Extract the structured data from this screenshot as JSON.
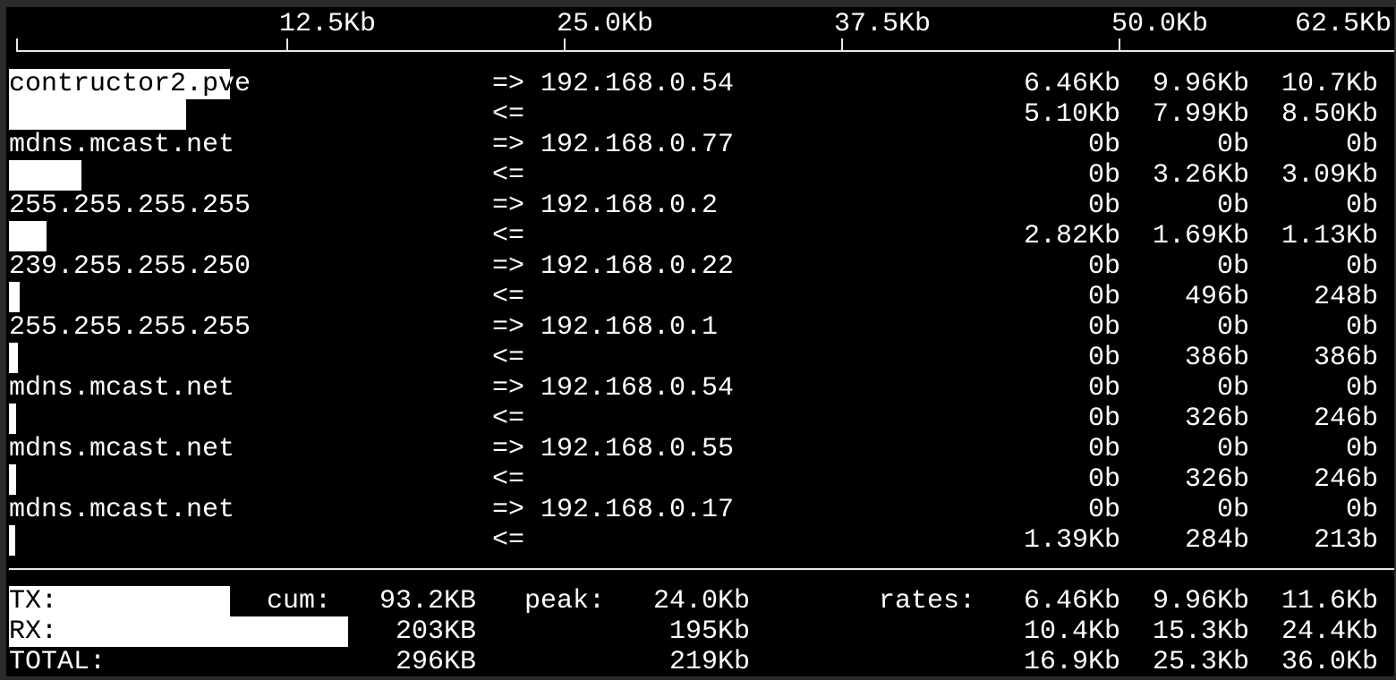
{
  "scale": {
    "ticks": [
      "12.5Kb",
      "25.0Kb",
      "37.5Kb",
      "50.0Kb",
      "62.5Kb"
    ],
    "tick_values_kb": [
      12.5,
      25.0,
      37.5,
      50.0,
      62.5
    ]
  },
  "flows": [
    {
      "host": "contructor2.pve",
      "dest": "192.168.0.54",
      "out": [
        "6.46Kb",
        "9.96Kb",
        "10.7Kb"
      ],
      "in": [
        "5.10Kb",
        "7.99Kb",
        "8.50Kb"
      ]
    },
    {
      "host": "mdns.mcast.net",
      "dest": "192.168.0.77",
      "out": [
        "0b",
        "0b",
        "0b"
      ],
      "in": [
        "0b",
        "3.26Kb",
        "3.09Kb"
      ]
    },
    {
      "host": "255.255.255.255",
      "dest": "192.168.0.2",
      "out": [
        "0b",
        "0b",
        "0b"
      ],
      "in": [
        "2.82Kb",
        "1.69Kb",
        "1.13Kb"
      ]
    },
    {
      "host": "239.255.255.250",
      "dest": "192.168.0.22",
      "out": [
        "0b",
        "0b",
        "0b"
      ],
      "in": [
        "0b",
        "496b",
        "248b"
      ]
    },
    {
      "host": "255.255.255.255",
      "dest": "192.168.0.1",
      "out": [
        "0b",
        "0b",
        "0b"
      ],
      "in": [
        "0b",
        "386b",
        "386b"
      ]
    },
    {
      "host": "mdns.mcast.net",
      "dest": "192.168.0.54",
      "out": [
        "0b",
        "0b",
        "0b"
      ],
      "in": [
        "0b",
        "326b",
        "246b"
      ]
    },
    {
      "host": "mdns.mcast.net",
      "dest": "192.168.0.55",
      "out": [
        "0b",
        "0b",
        "0b"
      ],
      "in": [
        "0b",
        "326b",
        "246b"
      ]
    },
    {
      "host": "mdns.mcast.net",
      "dest": "192.168.0.17",
      "out": [
        "0b",
        "0b",
        "0b"
      ],
      "in": [
        "1.39Kb",
        "284b",
        "213b"
      ]
    }
  ],
  "arrows": {
    "out": "=>",
    "in": "<="
  },
  "totals": {
    "cum_label": "cum:",
    "peak_label": "peak:",
    "rates_label": "rates:",
    "rows": [
      {
        "label": "TX:",
        "cum": "93.2KB",
        "peak": "24.0Kb",
        "rates": [
          "6.46Kb",
          "9.96Kb",
          "11.6Kb"
        ]
      },
      {
        "label": "RX:",
        "cum": "203KB",
        "peak": "195Kb",
        "rates": [
          "10.4Kb",
          "15.3Kb",
          "24.4Kb"
        ]
      },
      {
        "label": "TOTAL:",
        "cum": "296KB",
        "peak": "219Kb",
        "rates": [
          "16.9Kb",
          "25.3Kb",
          "36.0Kb"
        ]
      }
    ]
  }
}
